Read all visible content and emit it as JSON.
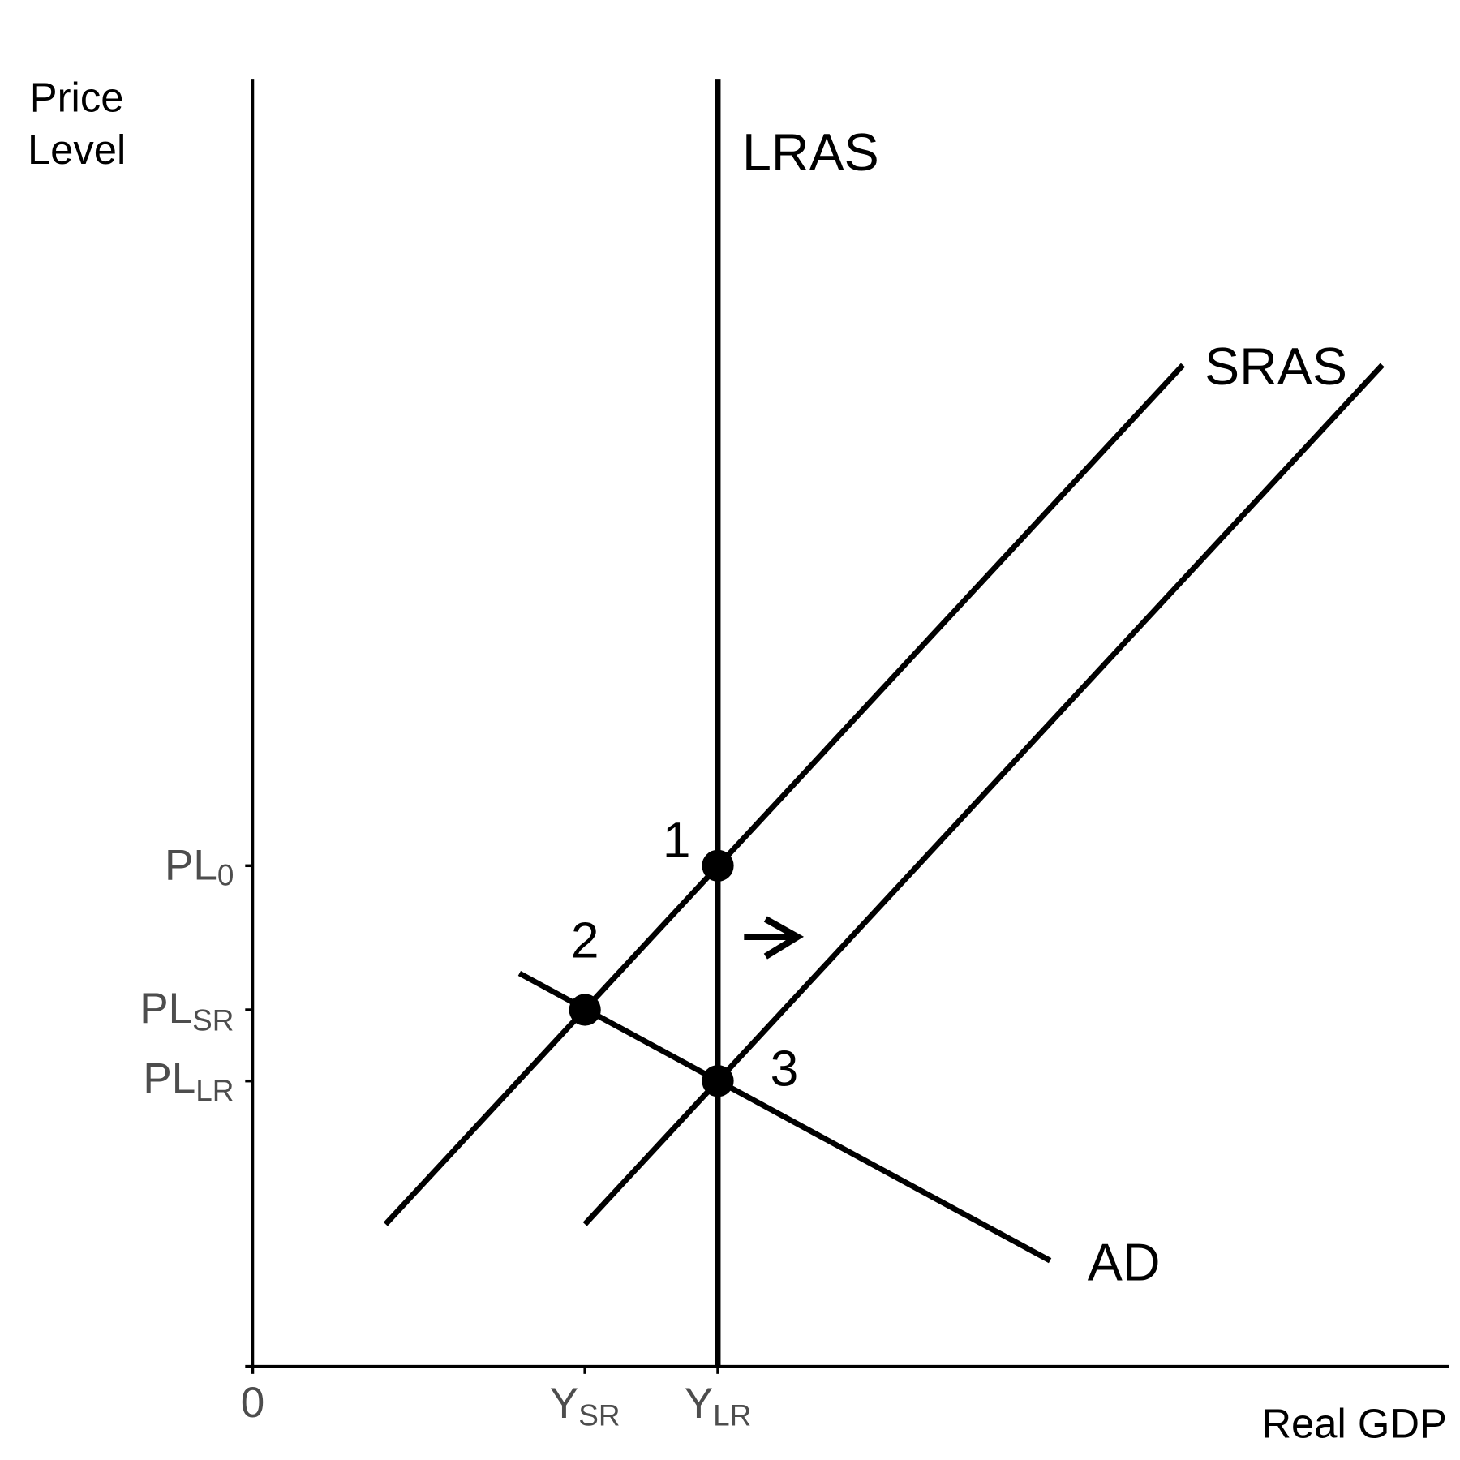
{
  "axes": {
    "y_title_lines": [
      "Price",
      "Level"
    ],
    "x_title": "Real GDP",
    "origin": "0",
    "y_ticks": [
      {
        "base": "PL",
        "sub": "0"
      },
      {
        "base": "PL",
        "sub": "SR"
      },
      {
        "base": "PL",
        "sub": "LR"
      }
    ],
    "x_ticks": [
      {
        "base": "Y",
        "sub": "SR"
      },
      {
        "base": "Y",
        "sub": "LR"
      }
    ]
  },
  "curves": [
    {
      "label": "LRAS"
    },
    {
      "label": "SRAS"
    },
    {
      "label": "AD"
    }
  ],
  "points": [
    {
      "label": "1"
    },
    {
      "label": "2"
    },
    {
      "label": "3"
    }
  ]
}
